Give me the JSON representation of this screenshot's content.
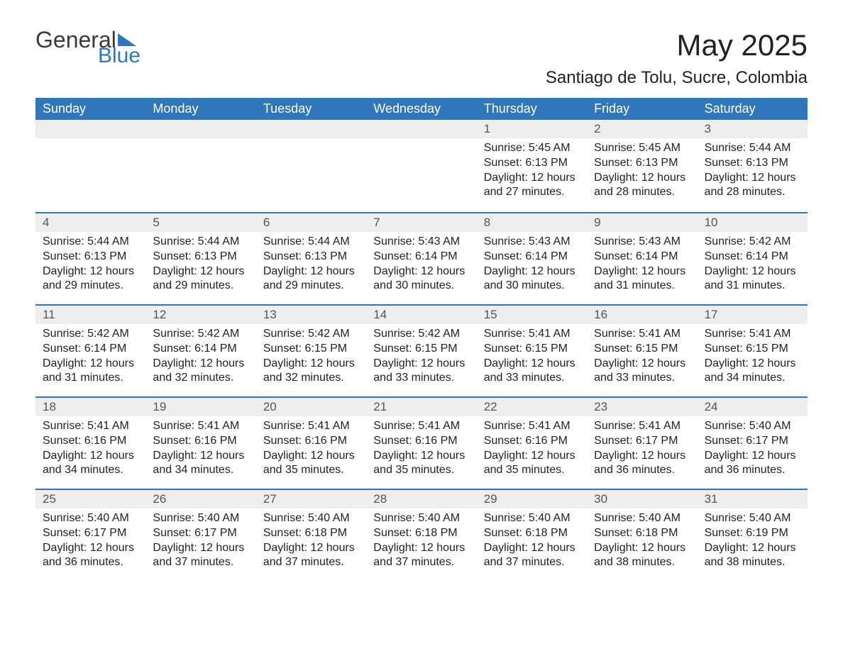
{
  "logo": {
    "text1": "General",
    "text2": "Blue"
  },
  "title": "May 2025",
  "subtitle": "Santiago de Tolu, Sucre, Colombia",
  "colors": {
    "header_bg": "#2f76bb",
    "header_text": "#ffffff",
    "daynum_bg": "#eeeeee",
    "daynum_border": "#2f76bb",
    "body_text": "#222222",
    "page_bg": "#ffffff"
  },
  "calendar": {
    "columns": [
      "Sunday",
      "Monday",
      "Tuesday",
      "Wednesday",
      "Thursday",
      "Friday",
      "Saturday"
    ],
    "first_weekday_index": 4,
    "days_in_month": 31,
    "days": {
      "1": {
        "sunrise": "5:45 AM",
        "sunset": "6:13 PM",
        "daylight": "12 hours and 27 minutes."
      },
      "2": {
        "sunrise": "5:45 AM",
        "sunset": "6:13 PM",
        "daylight": "12 hours and 28 minutes."
      },
      "3": {
        "sunrise": "5:44 AM",
        "sunset": "6:13 PM",
        "daylight": "12 hours and 28 minutes."
      },
      "4": {
        "sunrise": "5:44 AM",
        "sunset": "6:13 PM",
        "daylight": "12 hours and 29 minutes."
      },
      "5": {
        "sunrise": "5:44 AM",
        "sunset": "6:13 PM",
        "daylight": "12 hours and 29 minutes."
      },
      "6": {
        "sunrise": "5:44 AM",
        "sunset": "6:13 PM",
        "daylight": "12 hours and 29 minutes."
      },
      "7": {
        "sunrise": "5:43 AM",
        "sunset": "6:14 PM",
        "daylight": "12 hours and 30 minutes."
      },
      "8": {
        "sunrise": "5:43 AM",
        "sunset": "6:14 PM",
        "daylight": "12 hours and 30 minutes."
      },
      "9": {
        "sunrise": "5:43 AM",
        "sunset": "6:14 PM",
        "daylight": "12 hours and 31 minutes."
      },
      "10": {
        "sunrise": "5:42 AM",
        "sunset": "6:14 PM",
        "daylight": "12 hours and 31 minutes."
      },
      "11": {
        "sunrise": "5:42 AM",
        "sunset": "6:14 PM",
        "daylight": "12 hours and 31 minutes."
      },
      "12": {
        "sunrise": "5:42 AM",
        "sunset": "6:14 PM",
        "daylight": "12 hours and 32 minutes."
      },
      "13": {
        "sunrise": "5:42 AM",
        "sunset": "6:15 PM",
        "daylight": "12 hours and 32 minutes."
      },
      "14": {
        "sunrise": "5:42 AM",
        "sunset": "6:15 PM",
        "daylight": "12 hours and 33 minutes."
      },
      "15": {
        "sunrise": "5:41 AM",
        "sunset": "6:15 PM",
        "daylight": "12 hours and 33 minutes."
      },
      "16": {
        "sunrise": "5:41 AM",
        "sunset": "6:15 PM",
        "daylight": "12 hours and 33 minutes."
      },
      "17": {
        "sunrise": "5:41 AM",
        "sunset": "6:15 PM",
        "daylight": "12 hours and 34 minutes."
      },
      "18": {
        "sunrise": "5:41 AM",
        "sunset": "6:16 PM",
        "daylight": "12 hours and 34 minutes."
      },
      "19": {
        "sunrise": "5:41 AM",
        "sunset": "6:16 PM",
        "daylight": "12 hours and 34 minutes."
      },
      "20": {
        "sunrise": "5:41 AM",
        "sunset": "6:16 PM",
        "daylight": "12 hours and 35 minutes."
      },
      "21": {
        "sunrise": "5:41 AM",
        "sunset": "6:16 PM",
        "daylight": "12 hours and 35 minutes."
      },
      "22": {
        "sunrise": "5:41 AM",
        "sunset": "6:16 PM",
        "daylight": "12 hours and 35 minutes."
      },
      "23": {
        "sunrise": "5:41 AM",
        "sunset": "6:17 PM",
        "daylight": "12 hours and 36 minutes."
      },
      "24": {
        "sunrise": "5:40 AM",
        "sunset": "6:17 PM",
        "daylight": "12 hours and 36 minutes."
      },
      "25": {
        "sunrise": "5:40 AM",
        "sunset": "6:17 PM",
        "daylight": "12 hours and 36 minutes."
      },
      "26": {
        "sunrise": "5:40 AM",
        "sunset": "6:17 PM",
        "daylight": "12 hours and 37 minutes."
      },
      "27": {
        "sunrise": "5:40 AM",
        "sunset": "6:18 PM",
        "daylight": "12 hours and 37 minutes."
      },
      "28": {
        "sunrise": "5:40 AM",
        "sunset": "6:18 PM",
        "daylight": "12 hours and 37 minutes."
      },
      "29": {
        "sunrise": "5:40 AM",
        "sunset": "6:18 PM",
        "daylight": "12 hours and 37 minutes."
      },
      "30": {
        "sunrise": "5:40 AM",
        "sunset": "6:18 PM",
        "daylight": "12 hours and 38 minutes."
      },
      "31": {
        "sunrise": "5:40 AM",
        "sunset": "6:19 PM",
        "daylight": "12 hours and 38 minutes."
      }
    },
    "labels": {
      "sunrise": "Sunrise: ",
      "sunset": "Sunset: ",
      "daylight": "Daylight: "
    }
  }
}
